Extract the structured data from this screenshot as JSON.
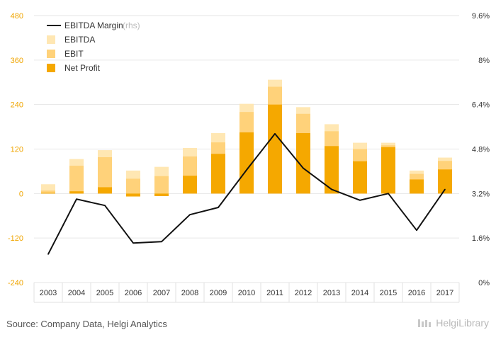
{
  "source_text": "Source: Company Data, Helgi Analytics",
  "logo_text": "HelgiLibrary",
  "colors": {
    "ebitda": "#ffe7b3",
    "ebit": "#ffd27a",
    "net_profit": "#f5a800",
    "margin_line": "#111111",
    "left_axis_text": "#f0a500",
    "grid": "#e6e6e6"
  },
  "chart_data": {
    "type": "bar",
    "categories": [
      "2003",
      "2004",
      "2005",
      "2006",
      "2007",
      "2008",
      "2009",
      "2010",
      "2011",
      "2012",
      "2013",
      "2014",
      "2015",
      "2016",
      "2017"
    ],
    "series": [
      {
        "name": "EBITDA",
        "kind": "bar",
        "values": [
          25,
          93,
          117,
          62,
          72,
          123,
          163,
          242,
          307,
          233,
          187,
          137,
          137,
          62,
          97
        ]
      },
      {
        "name": "EBIT",
        "kind": "bar",
        "values": [
          8,
          75,
          98,
          40,
          47,
          100,
          138,
          220,
          288,
          215,
          168,
          120,
          130,
          53,
          88
        ]
      },
      {
        "name": "Net Profit",
        "kind": "bar",
        "values": [
          2,
          6,
          17,
          -8,
          -7,
          48,
          107,
          165,
          240,
          163,
          128,
          87,
          125,
          38,
          65
        ]
      },
      {
        "name": "EBITDA Margin",
        "note": "(rhs)",
        "kind": "line",
        "axis": "right",
        "values": [
          1.02,
          3.0,
          2.77,
          1.42,
          1.47,
          2.44,
          2.7,
          4.05,
          5.35,
          4.11,
          3.35,
          2.96,
          3.2,
          1.88,
          3.35
        ]
      }
    ],
    "y_left": {
      "ylim": [
        -240,
        480
      ],
      "ticks": [
        -240,
        -120,
        0,
        120,
        240,
        360,
        480
      ]
    },
    "y_right": {
      "ylim": [
        0,
        9.6
      ],
      "ticks": [
        "0%",
        "1.6%",
        "3.2%",
        "4.8%",
        "6.4%",
        "8%",
        "9.6%"
      ]
    },
    "legend_position": "top-left",
    "grid": true
  }
}
